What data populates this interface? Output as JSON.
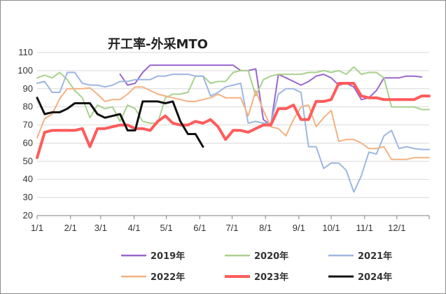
{
  "chart_data": {
    "type": "line",
    "title": "开工率-外采MTO",
    "xlabel": "",
    "ylabel": "",
    "ylim": [
      20,
      110
    ],
    "yticks": [
      20,
      30,
      40,
      50,
      60,
      70,
      80,
      90,
      100,
      110
    ],
    "x_range": [
      1,
      53
    ],
    "xticks": [
      {
        "label": "1/1",
        "week": 1
      },
      {
        "label": "2/1",
        "week": 5.43
      },
      {
        "label": "3/1",
        "week": 9.43
      },
      {
        "label": "4/1",
        "week": 13.86
      },
      {
        "label": "5/1",
        "week": 18.14
      },
      {
        "label": "6/1",
        "week": 22.57
      },
      {
        "label": "7/1",
        "week": 26.86
      },
      {
        "label": "8/1",
        "week": 31.29
      },
      {
        "label": "9/1",
        "week": 35.71
      },
      {
        "label": "10/1",
        "week": 40
      },
      {
        "label": "11/1",
        "week": 44.43
      },
      {
        "label": "12/1",
        "week": 48.71
      }
    ],
    "grid": "horizontal",
    "legend_position": "bottom",
    "series": [
      {
        "name": "2019年",
        "color": "#9966cc",
        "width": 2,
        "x": [
          12,
          13,
          14,
          15,
          16,
          17,
          18,
          19,
          20,
          21,
          22,
          23,
          24,
          25,
          26,
          27,
          28,
          29,
          30,
          31,
          32,
          33,
          34,
          35,
          36,
          37,
          38,
          39,
          40,
          41,
          42,
          43,
          44,
          45,
          46,
          47,
          48,
          49,
          50,
          51,
          52
        ],
        "y": [
          98,
          92,
          93,
          99,
          103,
          103,
          103,
          103,
          103,
          103,
          103,
          103,
          103,
          103,
          103,
          103,
          100,
          100,
          101,
          73,
          70,
          98,
          96,
          94,
          92,
          94,
          97,
          98,
          96,
          92,
          93,
          91,
          84,
          85,
          89,
          96,
          96,
          96,
          97,
          97,
          96.5
        ]
      },
      {
        "name": "2020年",
        "color": "#a9d18e",
        "width": 2,
        "x": [
          1,
          2,
          3,
          4,
          5,
          6,
          7,
          8,
          9,
          10,
          11,
          12,
          13,
          14,
          15,
          16,
          17,
          18,
          19,
          20,
          21,
          22,
          23,
          24,
          25,
          26,
          27,
          28,
          29,
          30,
          31,
          32,
          33,
          34,
          35,
          36,
          37,
          38,
          39,
          40,
          41,
          42,
          43,
          44,
          45,
          46,
          47,
          48,
          49,
          50,
          51,
          52,
          53
        ],
        "y": [
          96,
          97.5,
          96,
          99,
          95,
          89,
          85,
          74,
          81,
          79,
          80,
          72,
          81,
          79,
          72,
          71,
          71,
          85,
          87,
          87,
          88,
          97,
          97,
          93,
          94,
          94,
          99,
          100,
          100,
          86,
          95,
          97,
          98,
          98,
          98,
          98,
          99,
          99,
          100,
          99,
          100,
          98,
          102,
          98,
          99,
          99,
          96,
          80,
          80,
          80,
          80,
          78.5,
          78.5
        ]
      },
      {
        "name": "2021年",
        "color": "#9db7e0",
        "width": 2,
        "x": [
          1,
          2,
          3,
          4,
          5,
          6,
          7,
          8,
          9,
          10,
          11,
          12,
          13,
          14,
          15,
          16,
          17,
          18,
          19,
          20,
          21,
          22,
          23,
          24,
          25,
          26,
          27,
          28,
          29,
          30,
          31,
          32,
          33,
          34,
          35,
          36,
          37,
          38,
          39,
          40,
          41,
          42,
          43,
          44,
          45,
          46,
          47,
          48,
          49,
          50,
          51,
          52,
          53
        ],
        "y": [
          93,
          94,
          88,
          88,
          99,
          99,
          93,
          92,
          92,
          91,
          92,
          94,
          94,
          95,
          95,
          95,
          97,
          97,
          98,
          98,
          98,
          97,
          97,
          86,
          88,
          91,
          92,
          93,
          71,
          72,
          71,
          71,
          87,
          90,
          90,
          88,
          58,
          58,
          46,
          49,
          49,
          45,
          33,
          42,
          55,
          54,
          64,
          67,
          57,
          58,
          57,
          56.5,
          56.5
        ]
      },
      {
        "name": "2022年",
        "color": "#f4b183",
        "width": 2,
        "x": [
          1,
          2,
          3,
          4,
          5,
          6,
          7,
          8,
          9,
          10,
          11,
          12,
          13,
          14,
          15,
          16,
          17,
          18,
          19,
          20,
          21,
          22,
          23,
          24,
          25,
          26,
          27,
          28,
          29,
          30,
          31,
          32,
          33,
          34,
          35,
          36,
          37,
          38,
          39,
          40,
          41,
          42,
          43,
          44,
          45,
          46,
          47,
          48,
          49,
          50,
          51,
          52,
          53
        ],
        "y": [
          63,
          73.5,
          76,
          84.5,
          90,
          90,
          90,
          90.5,
          87,
          83,
          84,
          84,
          87,
          91,
          91,
          89,
          87,
          86,
          85,
          84,
          83,
          83,
          84,
          85,
          87,
          85,
          85,
          85,
          75,
          89,
          78,
          69,
          68,
          64,
          73,
          80,
          81,
          69,
          74,
          78,
          61,
          62,
          62,
          60,
          57,
          57,
          58,
          51,
          51,
          51,
          52,
          52,
          52
        ]
      },
      {
        "name": "2023年",
        "color": "#ff5b5b",
        "width": 4,
        "x": [
          1,
          2,
          3,
          4,
          5,
          6,
          7,
          8,
          9,
          10,
          11,
          12,
          13,
          14,
          15,
          16,
          17,
          18,
          19,
          20,
          21,
          22,
          23,
          24,
          25,
          26,
          27,
          28,
          29,
          30,
          31,
          32,
          33,
          34,
          35,
          36,
          37,
          38,
          39,
          40,
          41,
          42,
          43,
          44,
          45,
          46,
          47,
          48,
          49,
          50,
          51,
          52,
          53
        ],
        "y": [
          52,
          66,
          67,
          67,
          67,
          67,
          68,
          58,
          68,
          68,
          69,
          70,
          70,
          68,
          68,
          67,
          72,
          75,
          71,
          70,
          70,
          72,
          71,
          73,
          69,
          62,
          67,
          67,
          66,
          68,
          70,
          70,
          79,
          79,
          81,
          73,
          73,
          83,
          83,
          84,
          93,
          93,
          93,
          86,
          85,
          85,
          84,
          84,
          84,
          84,
          84,
          86,
          86
        ]
      },
      {
        "name": "2024年",
        "color": "#111111",
        "width": 3,
        "x": [
          1,
          2,
          3,
          4,
          5,
          6,
          7,
          8,
          9,
          10,
          11,
          12,
          13,
          14,
          15,
          16,
          17,
          18,
          19,
          20,
          21,
          22,
          23
        ],
        "y": [
          85,
          76,
          77,
          77,
          79,
          82,
          82,
          82,
          76,
          74,
          75,
          76,
          67,
          67,
          83,
          83,
          83,
          82,
          83,
          72,
          65,
          65,
          58
        ]
      }
    ]
  }
}
